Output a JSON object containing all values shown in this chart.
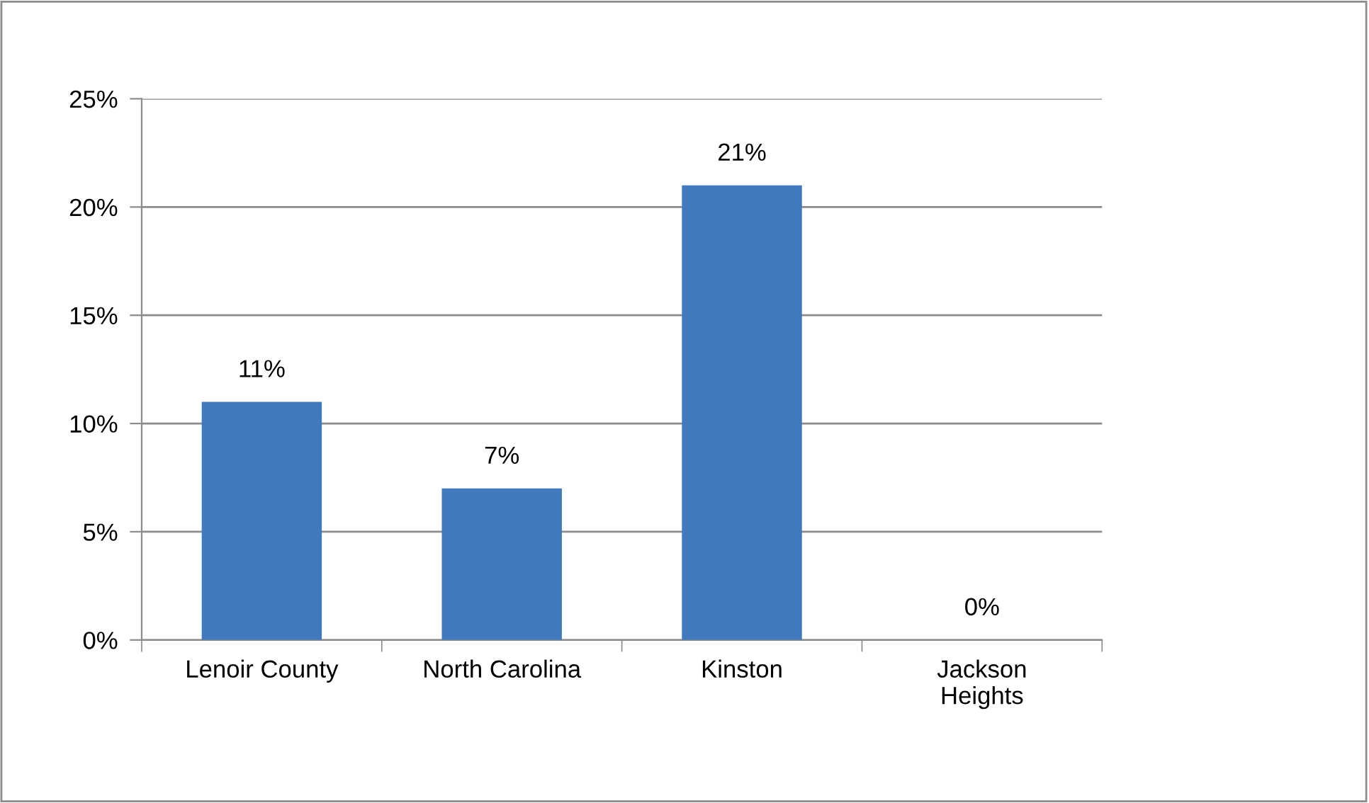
{
  "chart_data": {
    "type": "bar",
    "categories": [
      "Lenoir County",
      "North Carolina",
      "Kinston",
      "Jackson\nHeights"
    ],
    "values": [
      11,
      7,
      21,
      0
    ],
    "value_labels": [
      "11%",
      "7%",
      "21%",
      "0%"
    ],
    "color": "#4079bd",
    "ylim": [
      0,
      25
    ],
    "yticks": [
      {
        "value": 0,
        "label": "0%"
      },
      {
        "value": 5,
        "label": "5%"
      },
      {
        "value": 10,
        "label": "10%"
      },
      {
        "value": 15,
        "label": "15%"
      },
      {
        "value": 20,
        "label": "20%"
      },
      {
        "value": 25,
        "label": "25%"
      }
    ],
    "grid": "y"
  }
}
